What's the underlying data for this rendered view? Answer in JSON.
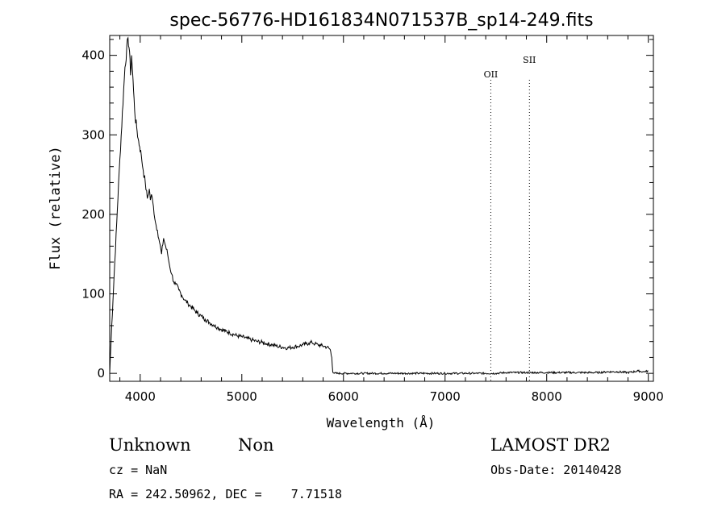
{
  "chart_data": {
    "type": "line",
    "title": "spec-56776-HD161834N071537B_sp14-249.fits",
    "xlabel": "Wavelength (Å)",
    "ylabel": "Flux (relative)",
    "xlim": [
      3700,
      9050
    ],
    "ylim": [
      -10,
      425
    ],
    "x_ticks": [
      4000,
      5000,
      6000,
      7000,
      8000,
      9000
    ],
    "y_ticks": [
      0,
      100,
      200,
      300,
      400
    ],
    "grid": false,
    "series": [
      {
        "x": [
          3700,
          3720,
          3750,
          3800,
          3850,
          3880,
          3895,
          3905,
          3915,
          3925,
          3935,
          3950,
          3965,
          3980,
          3995,
          4010,
          4030,
          4050,
          4070,
          4090,
          4100,
          4110,
          4130,
          4150,
          4170,
          4190,
          4210,
          4230,
          4250,
          4270,
          4290,
          4310,
          4330,
          4350,
          4380,
          4410,
          4440,
          4470,
          4500,
          4530,
          4560,
          4600,
          4640,
          4680,
          4720,
          4760,
          4800,
          4840,
          4880,
          4920,
          4960,
          5000,
          5050,
          5100,
          5150,
          5200,
          5250,
          5300,
          5350,
          5400,
          5450,
          5500,
          5550,
          5600,
          5630,
          5660,
          5690,
          5720,
          5750,
          5780,
          5810,
          5840,
          5870,
          5885,
          5895,
          5910,
          5950,
          6000,
          6100,
          6200,
          6300,
          6400,
          6500,
          6600,
          6700,
          6800,
          6900,
          7000,
          7100,
          7200,
          7300,
          7400,
          7500,
          7600,
          7700,
          7800,
          7900,
          8000,
          8100,
          8200,
          8300,
          8400,
          8500,
          8600,
          8700,
          8800,
          8900,
          8950,
          9000
        ],
        "y": [
          0,
          60,
          140,
          270,
          385,
          422,
          405,
          375,
          400,
          380,
          355,
          322,
          310,
          295,
          285,
          275,
          255,
          240,
          220,
          232,
          218,
          225,
          210,
          190,
          180,
          165,
          150,
          170,
          160,
          150,
          135,
          125,
          115,
          112,
          105,
          98,
          92,
          88,
          84,
          80,
          76,
          72,
          68,
          64,
          61,
          58,
          55,
          53,
          51,
          49,
          47,
          46,
          44,
          42,
          40,
          39,
          37,
          36,
          34,
          33,
          32,
          33,
          34,
          36,
          37,
          38,
          39,
          37,
          36,
          35,
          34,
          33,
          30,
          20,
          2,
          0,
          0,
          0,
          0,
          0,
          0,
          0,
          0,
          0,
          0,
          0,
          0,
          0,
          0,
          0,
          0,
          0,
          0,
          1,
          1,
          1,
          1,
          1,
          1,
          1,
          1,
          1,
          1,
          2,
          2,
          1,
          3,
          2,
          3
        ]
      }
    ],
    "annotations": [
      {
        "label": "OII",
        "x": 7450
      },
      {
        "label": "SII",
        "x": 7830
      }
    ]
  },
  "info": {
    "object_class": "Unknown",
    "object_subclass": "Non",
    "cz": "cz = NaN",
    "coords": "RA = 242.50962, DEC =    7.71518",
    "survey": "LAMOST DR2",
    "obs_date": "Obs-Date: 20140428"
  }
}
